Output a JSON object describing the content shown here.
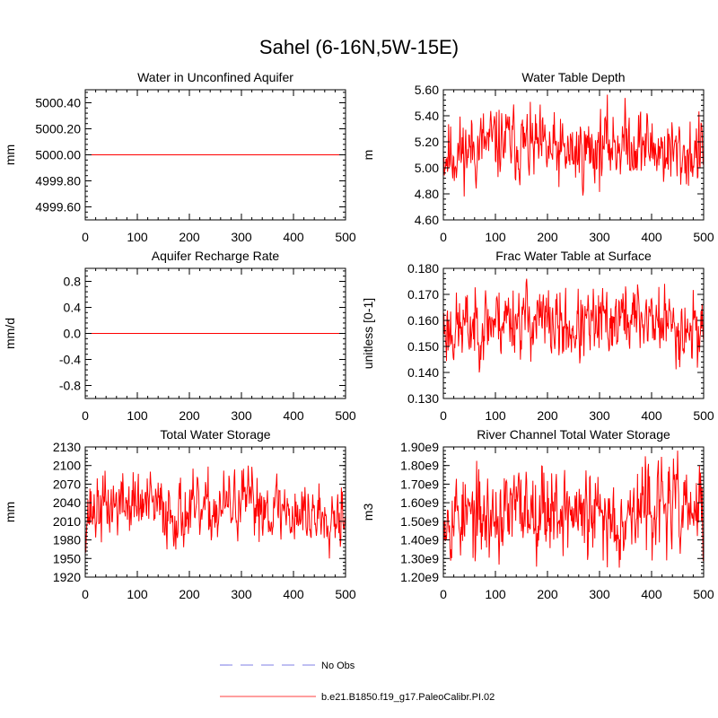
{
  "figure_title": "Sahel (6-16N,5W-15E)",
  "legend": [
    {
      "label": "No Obs",
      "color": "#aaaaee",
      "style": "dashed"
    },
    {
      "label": "b.e21.B1850.f19_g17.PaleoCalibr.PI.02",
      "color": "#ff6666",
      "style": "solid"
    }
  ],
  "chart_data": [
    {
      "type": "line",
      "title": "Water in Unconfined Aquifer",
      "xlabel": "",
      "ylabel": "mm",
      "xlim": [
        0,
        500
      ],
      "ylim": [
        4999.5,
        5000.5
      ],
      "xticks": [
        0,
        100,
        200,
        300,
        400,
        500
      ],
      "yticks": [
        4999.6,
        4999.8,
        5000.0,
        5000.2,
        5000.4
      ],
      "ytick_labels": [
        "4999.60",
        "4999.80",
        "5000.00",
        "5000.20",
        "5000.40"
      ],
      "series": [
        {
          "name": "b.e21.B1850.f19_g17.PaleoCalibr.PI.02",
          "constant": 5000.0
        }
      ]
    },
    {
      "type": "line",
      "title": "Water Table Depth",
      "xlabel": "",
      "ylabel": "m",
      "xlim": [
        0,
        500
      ],
      "ylim": [
        4.6,
        5.6
      ],
      "xticks": [
        0,
        100,
        200,
        300,
        400,
        500
      ],
      "yticks": [
        4.6,
        4.8,
        5.0,
        5.2,
        5.4,
        5.6
      ],
      "ytick_labels": [
        "4.60",
        "4.80",
        "5.00",
        "5.20",
        "5.40",
        "5.60"
      ],
      "series": [
        {
          "name": "b.e21.B1850.f19_g17.PaleoCalibr.PI.02",
          "mean": 5.15,
          "amplitude": 0.13,
          "min": 4.78,
          "max": 5.57,
          "seed": 11
        }
      ]
    },
    {
      "type": "line",
      "title": "Aquifer Recharge Rate",
      "xlabel": "",
      "ylabel": "mm/d",
      "xlim": [
        0,
        500
      ],
      "ylim": [
        -1.0,
        1.0
      ],
      "xticks": [
        0,
        100,
        200,
        300,
        400,
        500
      ],
      "yticks": [
        -0.8,
        -0.4,
        0.0,
        0.4,
        0.8
      ],
      "ytick_labels": [
        "-0.8",
        "-0.4",
        "0.0",
        "0.4",
        "0.8"
      ],
      "series": [
        {
          "name": "b.e21.B1850.f19_g17.PaleoCalibr.PI.02",
          "constant": 0.0
        }
      ]
    },
    {
      "type": "line",
      "title": "Frac Water Table at Surface",
      "xlabel": "",
      "ylabel": "unitless [0-1]",
      "xlim": [
        0,
        500
      ],
      "ylim": [
        0.13,
        0.18
      ],
      "xticks": [
        0,
        100,
        200,
        300,
        400,
        500
      ],
      "yticks": [
        0.13,
        0.14,
        0.15,
        0.16,
        0.17,
        0.18
      ],
      "ytick_labels": [
        "0.130",
        "0.140",
        "0.150",
        "0.160",
        "0.170",
        "0.180"
      ],
      "series": [
        {
          "name": "b.e21.B1850.f19_g17.PaleoCalibr.PI.02",
          "mean": 0.159,
          "amplitude": 0.0065,
          "min": 0.14,
          "max": 0.176,
          "seed": 23
        }
      ]
    },
    {
      "type": "line",
      "title": "Total Water Storage",
      "xlabel": "",
      "ylabel": "mm",
      "xlim": [
        0,
        500
      ],
      "ylim": [
        1920,
        2130
      ],
      "xticks": [
        0,
        100,
        200,
        300,
        400,
        500
      ],
      "yticks": [
        1920,
        1950,
        1980,
        2010,
        2040,
        2070,
        2100,
        2130
      ],
      "ytick_labels": [
        "1920",
        "1950",
        "1980",
        "2010",
        "2040",
        "2070",
        "2100",
        "2130"
      ],
      "series": [
        {
          "name": "b.e21.B1850.f19_g17.PaleoCalibr.PI.02",
          "mean": 2030,
          "amplitude": 25,
          "min": 1950,
          "max": 2100,
          "seed": 37
        }
      ]
    },
    {
      "type": "line",
      "title": "River Channel Total Water Storage",
      "xlabel": "",
      "ylabel": "m3",
      "xlim": [
        0,
        500
      ],
      "ylim": [
        1200000000.0,
        1900000000.0
      ],
      "xticks": [
        0,
        100,
        200,
        300,
        400,
        500
      ],
      "yticks": [
        1200000000.0,
        1300000000.0,
        1400000000.0,
        1500000000.0,
        1600000000.0,
        1700000000.0,
        1800000000.0,
        1900000000.0
      ],
      "ytick_labels": [
        "1.20e9",
        "1.30e9",
        "1.40e9",
        "1.50e9",
        "1.60e9",
        "1.70e9",
        "1.80e9",
        "1.90e9"
      ],
      "series": [
        {
          "name": "b.e21.B1850.f19_g17.PaleoCalibr.PI.02",
          "mean": 1550000000.0,
          "amplitude": 110000000.0,
          "min": 1200000000.0,
          "max": 1880000000.0,
          "seed": 53
        }
      ]
    }
  ]
}
